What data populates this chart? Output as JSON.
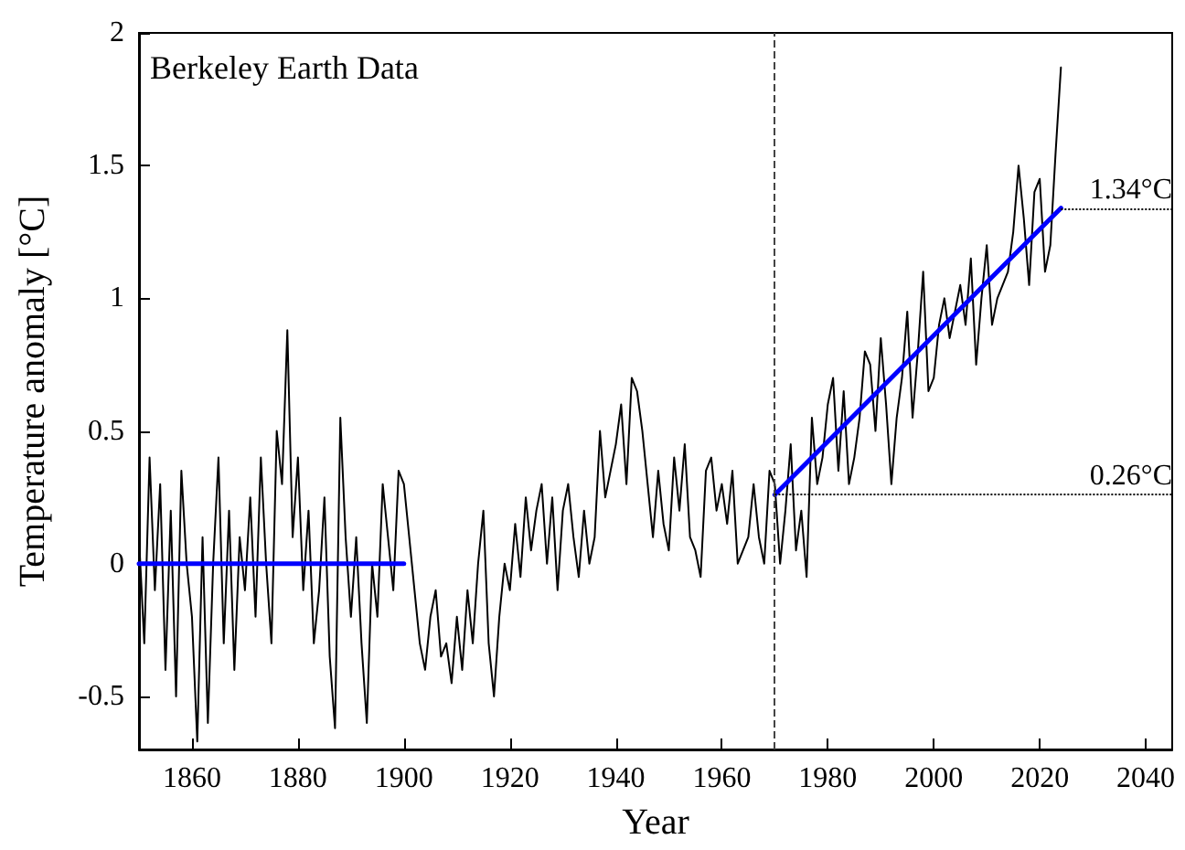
{
  "chart_data": {
    "type": "line",
    "xlabel": "Year",
    "ylabel": "Temperature anomaly [°C]",
    "annotations": [
      "Berkeley Earth Data"
    ],
    "xlim": [
      1850,
      2045
    ],
    "xticks": [
      1860,
      1880,
      1900,
      1920,
      1940,
      1960,
      1980,
      2000,
      2020,
      2040
    ],
    "ylim": [
      -0.7,
      2
    ],
    "yticks": [
      -0.5,
      0,
      0.5,
      1,
      1.5,
      2
    ],
    "grid": false,
    "marker": "none",
    "line_style": "solid",
    "series": [
      {
        "color": "#000000",
        "x": [
          1850,
          1851,
          1852,
          1853,
          1854,
          1855,
          1856,
          1857,
          1858,
          1859,
          1860,
          1861,
          1862,
          1863,
          1864,
          1865,
          1866,
          1867,
          1868,
          1869,
          1870,
          1871,
          1872,
          1873,
          1874,
          1875,
          1876,
          1877,
          1878,
          1879,
          1880,
          1881,
          1882,
          1883,
          1884,
          1885,
          1886,
          1887,
          1888,
          1889,
          1890,
          1891,
          1892,
          1893,
          1894,
          1895,
          1896,
          1897,
          1898,
          1899,
          1900,
          1901,
          1902,
          1903,
          1904,
          1905,
          1906,
          1907,
          1908,
          1909,
          1910,
          1911,
          1912,
          1913,
          1914,
          1915,
          1916,
          1917,
          1918,
          1919,
          1920,
          1921,
          1922,
          1923,
          1924,
          1925,
          1926,
          1927,
          1928,
          1929,
          1930,
          1931,
          1932,
          1933,
          1934,
          1935,
          1936,
          1937,
          1938,
          1939,
          1940,
          1941,
          1942,
          1943,
          1944,
          1945,
          1946,
          1947,
          1948,
          1949,
          1950,
          1951,
          1952,
          1953,
          1954,
          1955,
          1956,
          1957,
          1958,
          1959,
          1960,
          1961,
          1962,
          1963,
          1964,
          1965,
          1966,
          1967,
          1968,
          1969,
          1970,
          1971,
          1972,
          1973,
          1974,
          1975,
          1976,
          1977,
          1978,
          1979,
          1980,
          1981,
          1982,
          1983,
          1984,
          1985,
          1986,
          1987,
          1988,
          1989,
          1990,
          1991,
          1992,
          1993,
          1994,
          1995,
          1996,
          1997,
          1998,
          1999,
          2000,
          2001,
          2002,
          2003,
          2004,
          2005,
          2006,
          2007,
          2008,
          2009,
          2010,
          2011,
          2012,
          2013,
          2014,
          2015,
          2016,
          2017,
          2018,
          2019,
          2020,
          2021,
          2022,
          2023,
          2024
        ],
        "values": [
          0.1,
          -0.3,
          0.4,
          -0.1,
          0.3,
          -0.4,
          0.2,
          -0.5,
          0.35,
          0.0,
          -0.2,
          -0.67,
          0.1,
          -0.6,
          0.0,
          0.4,
          -0.3,
          0.2,
          -0.4,
          0.1,
          -0.1,
          0.25,
          -0.2,
          0.4,
          0.0,
          -0.3,
          0.5,
          0.3,
          0.88,
          0.1,
          0.4,
          -0.1,
          0.2,
          -0.3,
          -0.1,
          0.25,
          -0.35,
          -0.62,
          0.55,
          0.1,
          -0.2,
          0.1,
          -0.3,
          -0.6,
          0.0,
          -0.2,
          0.3,
          0.1,
          -0.1,
          0.35,
          0.3,
          0.1,
          -0.1,
          -0.3,
          -0.4,
          -0.2,
          -0.1,
          -0.35,
          -0.3,
          -0.45,
          -0.2,
          -0.4,
          -0.1,
          -0.3,
          0.0,
          0.2,
          -0.3,
          -0.5,
          -0.2,
          0.0,
          -0.1,
          0.15,
          -0.05,
          0.25,
          0.05,
          0.2,
          0.3,
          0.0,
          0.25,
          -0.1,
          0.2,
          0.3,
          0.1,
          -0.05,
          0.2,
          0.0,
          0.1,
          0.5,
          0.25,
          0.35,
          0.45,
          0.6,
          0.3,
          0.7,
          0.65,
          0.5,
          0.3,
          0.1,
          0.35,
          0.15,
          0.05,
          0.4,
          0.2,
          0.45,
          0.1,
          0.05,
          -0.05,
          0.35,
          0.4,
          0.2,
          0.3,
          0.15,
          0.35,
          0.0,
          0.05,
          0.1,
          0.3,
          0.1,
          0.0,
          0.35,
          0.3,
          0.0,
          0.2,
          0.45,
          0.05,
          0.2,
          -0.05,
          0.55,
          0.3,
          0.4,
          0.6,
          0.7,
          0.35,
          0.65,
          0.3,
          0.4,
          0.55,
          0.8,
          0.75,
          0.5,
          0.85,
          0.6,
          0.3,
          0.55,
          0.7,
          0.95,
          0.55,
          0.8,
          1.1,
          0.65,
          0.7,
          0.9,
          1.0,
          0.85,
          0.95,
          1.05,
          0.9,
          1.15,
          0.75,
          1.0,
          1.2,
          0.9,
          1.0,
          1.05,
          1.1,
          1.25,
          1.5,
          1.3,
          1.05,
          1.4,
          1.45,
          1.1,
          1.2,
          1.55,
          1.87
        ]
      },
      {
        "color": "#0000ff",
        "x": [
          1850,
          1900
        ],
        "values": [
          0,
          0
        ]
      },
      {
        "color": "#0000ff",
        "x": [
          1970,
          2024
        ],
        "values": [
          0.26,
          1.34
        ]
      }
    ],
    "ref_lines": [
      {
        "axis": "x",
        "value": 1970,
        "color": "#444444",
        "line_style": "dashed"
      },
      {
        "axis": "y",
        "value": 0.26,
        "label": "0.26°C",
        "color": "#000000",
        "line_style": "dotted"
      },
      {
        "axis": "y",
        "value": 1.34,
        "label": "1.34°C",
        "color": "#000000",
        "line_style": "dotted"
      }
    ]
  }
}
